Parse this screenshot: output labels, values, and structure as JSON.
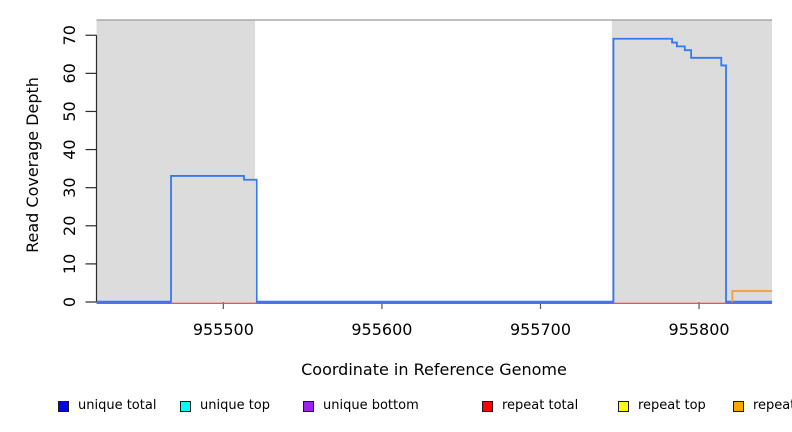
{
  "chart_data": {
    "type": "line",
    "title": "",
    "xlabel": "Coordinate in Reference Genome",
    "ylabel": "Read Coverage Depth",
    "xlim": [
      955420,
      955846
    ],
    "ylim": [
      0,
      74
    ],
    "x_ticks": [
      955500,
      955600,
      955700,
      955800
    ],
    "y_ticks": [
      0,
      10,
      20,
      30,
      40,
      50,
      60,
      70
    ],
    "grid": false,
    "legend_position": "bottom",
    "background_regions": [
      {
        "name": "left-shaded-region",
        "x0": 955420,
        "x1": 955520,
        "color": "#dcdcdc"
      },
      {
        "name": "right-shaded-region",
        "x0": 955745,
        "x1": 955846,
        "color": "#dcdcdc"
      }
    ],
    "series": [
      {
        "name": "unique bottom",
        "color": "#7e5ce4",
        "segments": [
          [
            [
              955420,
              0
            ],
            [
              955846,
              0
            ]
          ]
        ]
      },
      {
        "name": "repeat total",
        "color": "#e25757",
        "segments": [
          [
            [
              955467,
              0
            ],
            [
              955521,
              0
            ]
          ],
          [
            [
              955746,
              0
            ],
            [
              955817,
              0
            ]
          ]
        ]
      },
      {
        "name": "unique total",
        "color": "#3379f2",
        "segments": [
          [
            [
              955420,
              0
            ],
            [
              955467,
              0
            ],
            [
              955467,
              33
            ],
            [
              955513,
              33
            ],
            [
              955513,
              32
            ],
            [
              955521,
              32
            ],
            [
              955521,
              0
            ],
            [
              955746,
              0
            ],
            [
              955746,
              69
            ],
            [
              955783,
              69
            ],
            [
              955783,
              68
            ],
            [
              955786,
              68
            ],
            [
              955786,
              67
            ],
            [
              955791,
              67
            ],
            [
              955791,
              66
            ],
            [
              955795,
              66
            ],
            [
              955795,
              64
            ],
            [
              955814,
              64
            ],
            [
              955814,
              62
            ],
            [
              955817,
              62
            ],
            [
              955817,
              0
            ],
            [
              955846,
              0
            ]
          ]
        ]
      },
      {
        "name": "repeat bottom",
        "color": "#f29b3d",
        "segments": [
          [
            [
              955821,
              0
            ],
            [
              955821,
              3
            ],
            [
              955846,
              3
            ]
          ]
        ]
      }
    ]
  },
  "legend": {
    "items": [
      {
        "label": "unique total",
        "color": "#0000ff"
      },
      {
        "label": "unique top",
        "color": "#00ffff"
      },
      {
        "label": "unique bottom",
        "color": "#a020f0"
      },
      {
        "label": "repeat total",
        "color": "#ff0000"
      },
      {
        "label": "repeat top",
        "color": "#ffff00"
      },
      {
        "label": "repeat bottom",
        "color": "#ffa500"
      }
    ]
  }
}
